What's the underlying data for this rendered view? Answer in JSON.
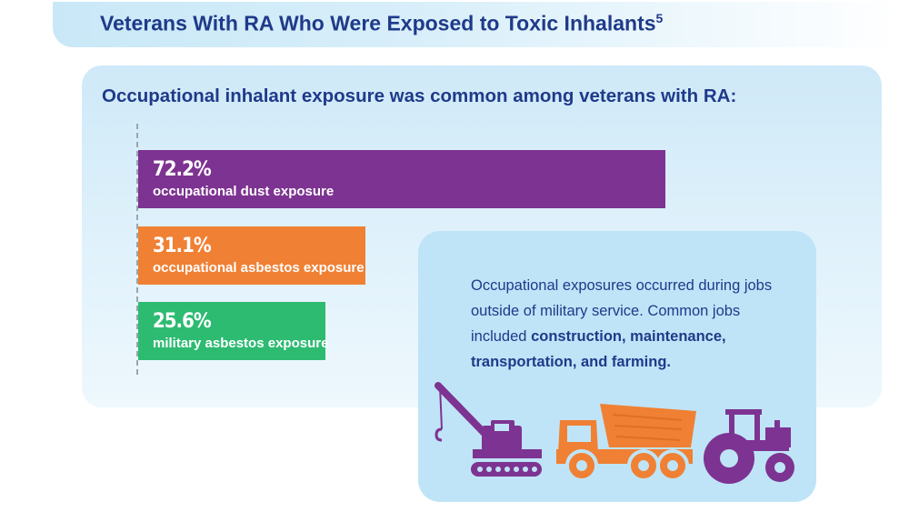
{
  "title": {
    "text": "Veterans With RA Who Were Exposed to Toxic Inhalants",
    "superscript": "5"
  },
  "subtitle": "Occupational inhalant exposure was common among veterans with RA:",
  "chart_data": {
    "type": "bar",
    "orientation": "horizontal",
    "title": "Occupational inhalant exposure was common among veterans with RA:",
    "categories": [
      "occupational dust exposure",
      "occupational asbestos exposure",
      "military asbestos exposure"
    ],
    "values": [
      72.2,
      31.1,
      25.6
    ],
    "value_labels": [
      "72.2%",
      "31.1%",
      "25.6%"
    ],
    "colors": [
      "#7d3391",
      "#f08033",
      "#2dbb72"
    ],
    "xlim": [
      0,
      100
    ],
    "grid": false,
    "legend": "none"
  },
  "info": {
    "text_plain": "Occupational exposures occurred during jobs outside of military service. Common jobs included ",
    "text_bold": "construction, maintenance, transportation, and farming."
  },
  "icons": [
    "crane-icon",
    "dump-truck-icon",
    "tractor-icon"
  ],
  "colors": {
    "title": "#1f3a8a",
    "panel": "#cfe9f8",
    "info_panel": "#bfe4f7",
    "purple": "#7d3391",
    "orange": "#f08033",
    "green": "#2dbb72"
  }
}
